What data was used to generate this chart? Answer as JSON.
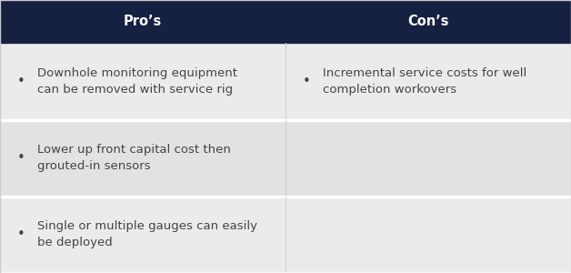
{
  "header_bg": "#162040",
  "header_text_color": "#ffffff",
  "row_bg_1": "#ebebeb",
  "row_bg_2": "#e2e2e2",
  "row_divider": "#ffffff",
  "col_divider": "#cccccc",
  "cell_text_color": "#444444",
  "col_split": 0.5,
  "headers": [
    "Pro’s",
    "Con’s"
  ],
  "rows": [
    {
      "pro": "Downhole monitoring equipment\ncan be removed with service rig",
      "con": "Incremental service costs for well\ncompletion workovers"
    },
    {
      "pro": "Lower up front capital cost then\ngrouted-in sensors",
      "con": ""
    },
    {
      "pro": "Single or multiple gauges can easily\nbe deployed",
      "con": ""
    }
  ],
  "header_fontsize": 10.5,
  "cell_fontsize": 9.5,
  "fig_width": 6.28,
  "fig_height": 3.0,
  "dpi": 100
}
